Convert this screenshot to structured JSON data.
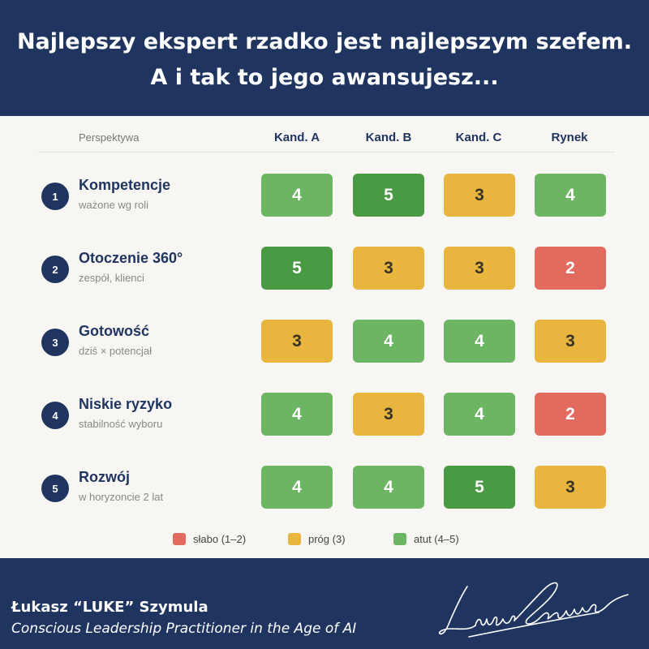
{
  "header": {
    "title_line1": "Najlepszy ekspert rzadko jest najlepszym szefem.",
    "title_line2": "A i tak to jego awansujesz..."
  },
  "table": {
    "perspective_label": "Perspektywa",
    "columns": [
      "Kand. A",
      "Kand. B",
      "Kand. C",
      "Rynek"
    ],
    "rows": [
      {
        "num": "1",
        "title": "Kompetencje",
        "subtitle": "ważone wg roli",
        "scores": [
          "4",
          "5",
          "3",
          "4"
        ]
      },
      {
        "num": "2",
        "title": "Otoczenie 360°",
        "subtitle": "zespół, klienci",
        "scores": [
          "5",
          "3",
          "3",
          "2"
        ]
      },
      {
        "num": "3",
        "title": "Gotowość",
        "subtitle": "dziś × potencjał",
        "scores": [
          "3",
          "4",
          "4",
          "3"
        ]
      },
      {
        "num": "4",
        "title": "Niskie ryzyko",
        "subtitle": "stabilność wyboru",
        "scores": [
          "4",
          "3",
          "4",
          "2"
        ]
      },
      {
        "num": "5",
        "title": "Rozwój",
        "subtitle": "w horyzoncie 2 lat",
        "scores": [
          "4",
          "4",
          "5",
          "3"
        ]
      }
    ]
  },
  "legend": [
    {
      "label": "słabo (1–2)",
      "color": "#e36a5e"
    },
    {
      "label": "próg (3)",
      "color": "#e8b53e"
    },
    {
      "label": "atut (4–5)",
      "color": "#6cb663"
    }
  ],
  "colors": {
    "navy": "#1f3560",
    "low": "#e36a5e",
    "threshold": "#e8b53e",
    "strength": "#6cb663",
    "strength_top": "#4a9a44"
  },
  "footer": {
    "author": "Łukasz “LUKE” Szymula",
    "tagline": "Conscious Leadership Practitioner in the Age of AI",
    "signature_text": "Łukasz Szymula"
  }
}
